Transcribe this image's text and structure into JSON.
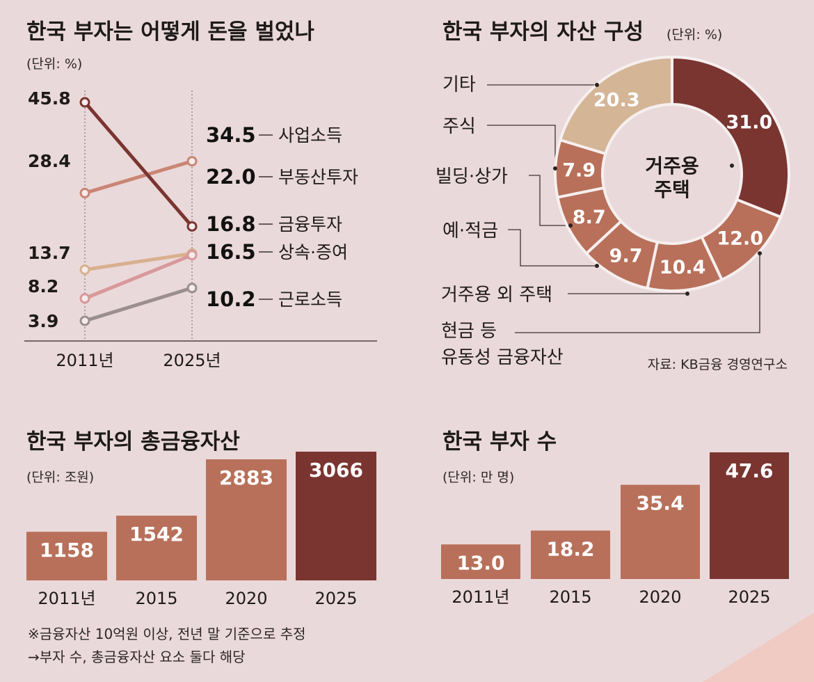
{
  "colors": {
    "background": "#ead9da",
    "dark": "#7a3531",
    "mid": "#b8705a",
    "light": "#d4b596",
    "salmon": "#c98574",
    "pink": "#d8989a",
    "gray": "#9a8e8f",
    "sand": "#d8b08f",
    "text": "#1e1a1a"
  },
  "chart_data": [
    {
      "id": "income-source",
      "type": "line",
      "title": "한국 부자는 어떻게 돈을 벌었나",
      "unit": "(단위: %)",
      "x": [
        "2011년",
        "2025년"
      ],
      "series": [
        {
          "name": "사업소득",
          "values": [
            28.4,
            34.5
          ],
          "start_label": "28.4",
          "end_label": "34.5",
          "color": "#c98574"
        },
        {
          "name": "부동산투자",
          "values": [
            45.8,
            22.0
          ],
          "start_label": "45.8",
          "end_label": "22.0",
          "color": "#7a3531"
        },
        {
          "name": "금융투자",
          "values": [
            13.7,
            16.8
          ],
          "start_label": "13.7",
          "end_label": "16.8",
          "color": "#d8b08f"
        },
        {
          "name": "상속·증여",
          "values": [
            8.2,
            16.5
          ],
          "start_label": "8.2",
          "end_label": "16.5",
          "color": "#d8989a"
        },
        {
          "name": "근로소득",
          "values": [
            3.9,
            10.2
          ],
          "start_label": "3.9",
          "end_label": "10.2",
          "color": "#9a8e8f"
        }
      ]
    },
    {
      "id": "asset-composition",
      "type": "pie",
      "title": "한국 부자의 자산 구성",
      "unit": "(단위: %)",
      "center_label": [
        "거주용",
        "주택"
      ],
      "slices": [
        {
          "name": "거주용 주택",
          "value": 31.0,
          "label": "31.0",
          "color": "#7a3531"
        },
        {
          "name": "현금 등 유동성 금융자산",
          "value": 12.0,
          "label": "12.0",
          "color": "#b8705a"
        },
        {
          "name": "거주용 외 주택",
          "value": 10.4,
          "label": "10.4",
          "color": "#b8705a"
        },
        {
          "name": "예·적금",
          "value": 9.7,
          "label": "9.7",
          "color": "#b8705a"
        },
        {
          "name": "빌딩·상가",
          "value": 8.7,
          "label": "8.7",
          "color": "#b8705a"
        },
        {
          "name": "주식",
          "value": 7.9,
          "label": "7.9",
          "color": "#b8705a"
        },
        {
          "name": "기타",
          "value": 20.3,
          "label": "20.3",
          "color": "#d4b596"
        }
      ],
      "callouts": {
        "etc": "기타",
        "stocks": "주식",
        "building": "빌딩·상가",
        "deposit": "예·적금",
        "other_housing": "거주용 외 주택",
        "cash_line1": "현금 등",
        "cash_line2": "유동성 금융자산"
      }
    },
    {
      "id": "total-financial-assets",
      "type": "bar",
      "title": "한국 부자의 총금융자산",
      "unit": "(단위: 조원)",
      "categories": [
        "2011년",
        "2015",
        "2020",
        "2025"
      ],
      "values": [
        1158,
        1542,
        2883,
        3066
      ],
      "labels": [
        "1158",
        "1542",
        "2883",
        "3066"
      ],
      "ylim": [
        0,
        3066
      ]
    },
    {
      "id": "number-of-rich",
      "type": "bar",
      "title": "한국 부자 수",
      "unit": "(단위: 만 명)",
      "categories": [
        "2011년",
        "2015",
        "2020",
        "2025"
      ],
      "values": [
        13.0,
        18.2,
        35.4,
        47.6
      ],
      "labels": [
        "13.0",
        "18.2",
        "35.4",
        "47.6"
      ],
      "ylim": [
        0,
        47.6
      ]
    }
  ],
  "source": "자료: KB금융 경영연구소",
  "notes": [
    "※금융자산 10억원 이상, 전년 말 기준으로 추정",
    "→부자 수, 총금융자산 요소 둘다 해당"
  ]
}
